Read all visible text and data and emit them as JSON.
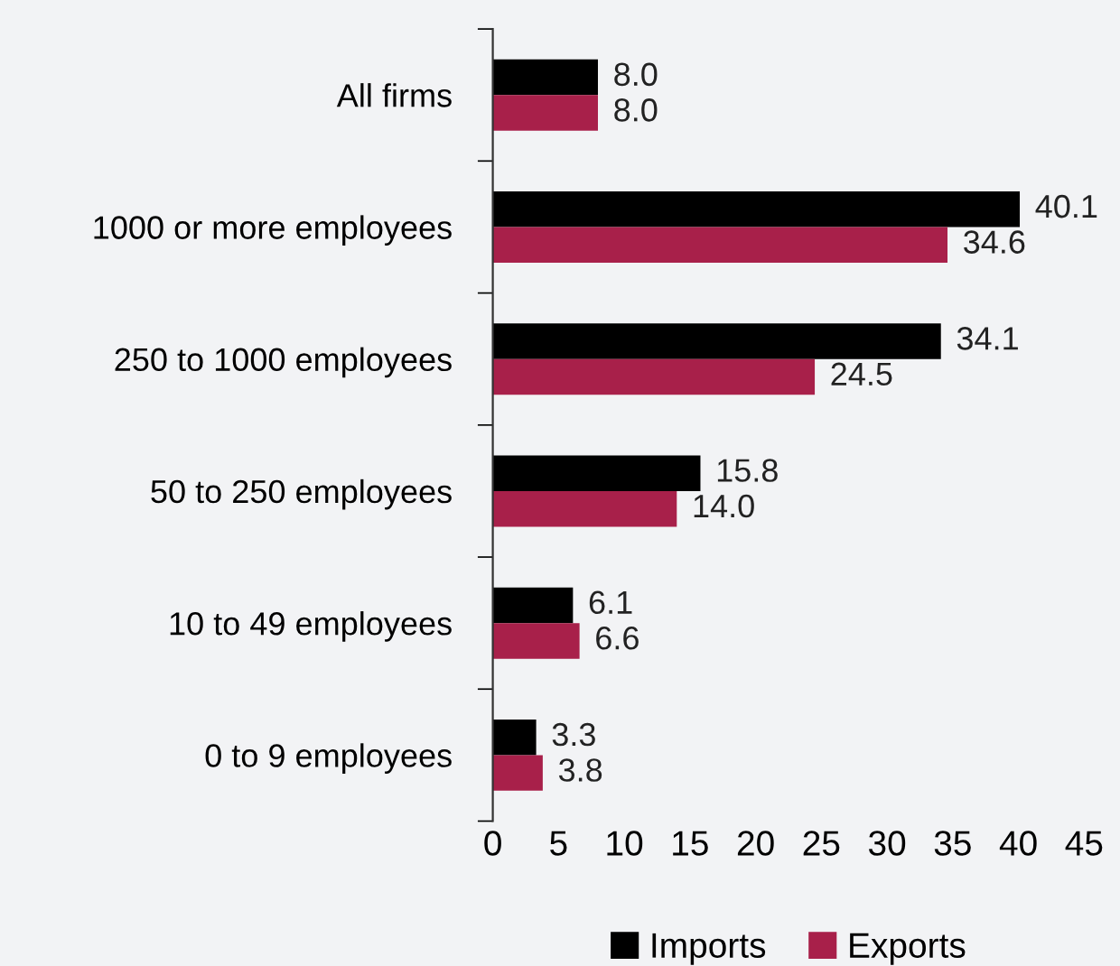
{
  "chart_data": {
    "type": "bar",
    "orientation": "horizontal",
    "categories": [
      "All firms",
      "1000 or more employees",
      "250 to 1000 employees",
      "50 to 250 employees",
      "10 to 49 employees",
      "0 to 9 employees"
    ],
    "series": [
      {
        "name": "Imports",
        "color": "#000000",
        "values": [
          8.0,
          40.1,
          34.1,
          15.8,
          6.1,
          3.3
        ],
        "value_labels": [
          "8.0",
          "40.1",
          "34.1",
          "15.8",
          "6.1",
          "3.3"
        ]
      },
      {
        "name": "Exports",
        "color": "#a8204a",
        "values": [
          8.0,
          34.6,
          24.5,
          14.0,
          6.6,
          3.8
        ],
        "value_labels": [
          "8.0",
          "34.6",
          "24.5",
          "14.0",
          "6.6",
          "3.8"
        ]
      }
    ],
    "xlim": [
      0,
      45
    ],
    "xticks": [
      0,
      5,
      10,
      15,
      20,
      25,
      30,
      35,
      40,
      45
    ],
    "legend": "bottom",
    "grid": false
  }
}
